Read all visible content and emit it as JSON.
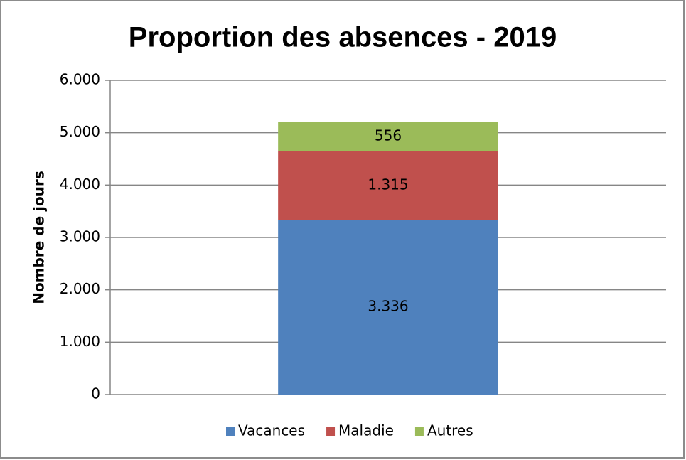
{
  "chart_data": {
    "type": "stacked_bar",
    "title": "Proportion des absences - 2019",
    "y_label": "Nombre de jours",
    "categories": [
      null
    ],
    "series": [
      {
        "name": "Vacances",
        "color": "#4f81bd",
        "values": [
          3336
        ],
        "value_labels": [
          "3.336"
        ]
      },
      {
        "name": "Maladie",
        "color": "#c0504d",
        "values": [
          1315
        ],
        "value_labels": [
          "1.315"
        ]
      },
      {
        "name": "Autres",
        "color": "#9bbb59",
        "values": [
          556
        ],
        "value_labels": [
          "556"
        ]
      }
    ],
    "ylim": [
      0,
      6000
    ],
    "yticks": [
      0,
      {
        "value": 1000,
        "label": "1.000"
      },
      {
        "value": 2000,
        "label": "2.000"
      },
      {
        "value": 3000,
        "label": "3.000"
      },
      {
        "value": 4000,
        "label": "4.000"
      },
      {
        "value": 5000,
        "label": "5.000"
      },
      {
        "value": 6000,
        "label": "6.000"
      }
    ],
    "grid": true,
    "legend": "bottom"
  }
}
